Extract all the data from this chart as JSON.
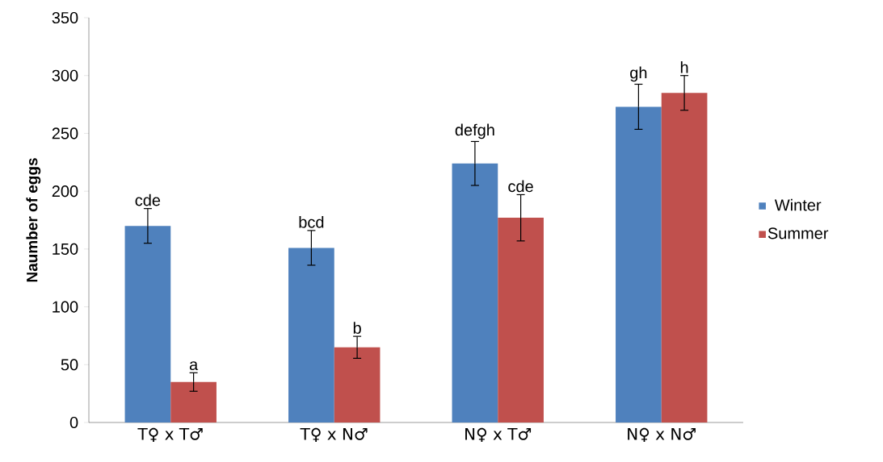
{
  "chart_data": {
    "type": "bar",
    "ylabel": "Naumber of eggs",
    "categories": [
      "T♀ x T♂",
      "T♀ x N♂",
      "N♀ x T♂",
      "N♀ x N♂"
    ],
    "series": [
      {
        "name": "Winter",
        "color": "#4f81bd",
        "values": [
          170,
          151,
          224,
          273
        ],
        "errors": [
          15,
          15,
          19,
          19.5
        ],
        "value_labels": [
          "cde",
          "bcd",
          "defgh",
          "gh"
        ]
      },
      {
        "name": "Summer",
        "color": "#c0504d",
        "values": [
          35,
          65,
          177,
          285
        ],
        "errors": [
          8,
          9.5,
          20,
          15
        ],
        "value_labels": [
          "a",
          "b",
          "cde",
          "h"
        ]
      }
    ],
    "ylim": [
      0,
      350
    ],
    "yticks": [
      0,
      50,
      100,
      150,
      200,
      250,
      300,
      350
    ],
    "grid": false,
    "legend": "right"
  }
}
